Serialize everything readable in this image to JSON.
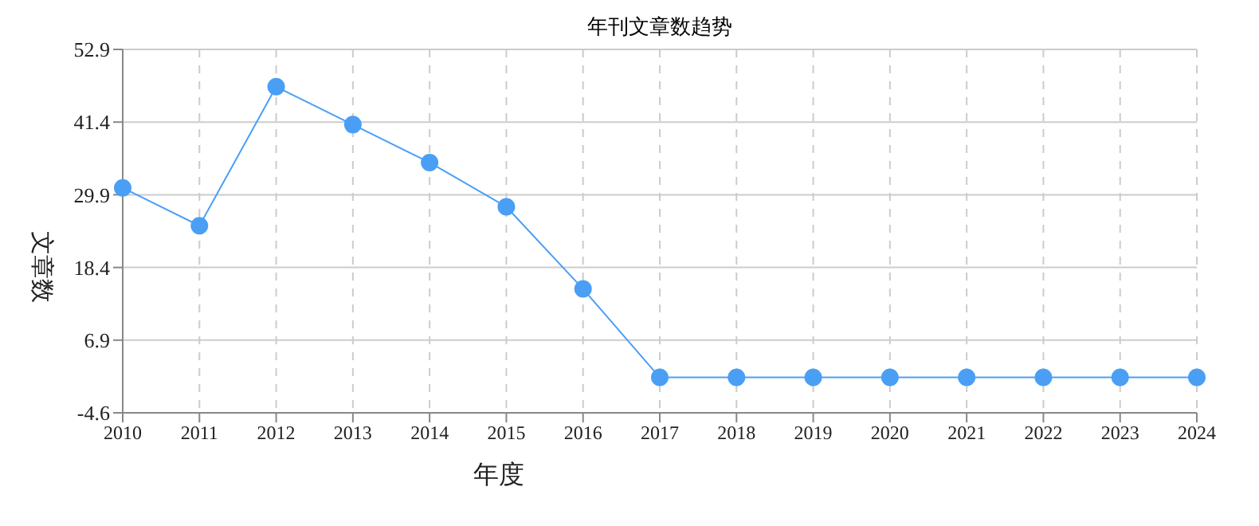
{
  "chart_data": {
    "type": "line",
    "title": "年刊文章数趋势",
    "xlabel": "年度",
    "ylabel": "文章数",
    "categories": [
      "2010",
      "2011",
      "2012",
      "2013",
      "2014",
      "2015",
      "2016",
      "2017",
      "2018",
      "2019",
      "2020",
      "2021",
      "2022",
      "2023",
      "2024"
    ],
    "series": [
      {
        "color": "#4a9ff5",
        "values": [
          31,
          25,
          47,
          41,
          35,
          28,
          15,
          1,
          1,
          1,
          1,
          1,
          1,
          1,
          1
        ]
      }
    ],
    "ylim": [
      -4.6,
      52.9
    ],
    "yticks": [
      -4.6,
      6.9,
      18.4,
      29.9,
      41.4,
      52.9
    ],
    "grid": true,
    "marker": "circle",
    "legend": false
  }
}
